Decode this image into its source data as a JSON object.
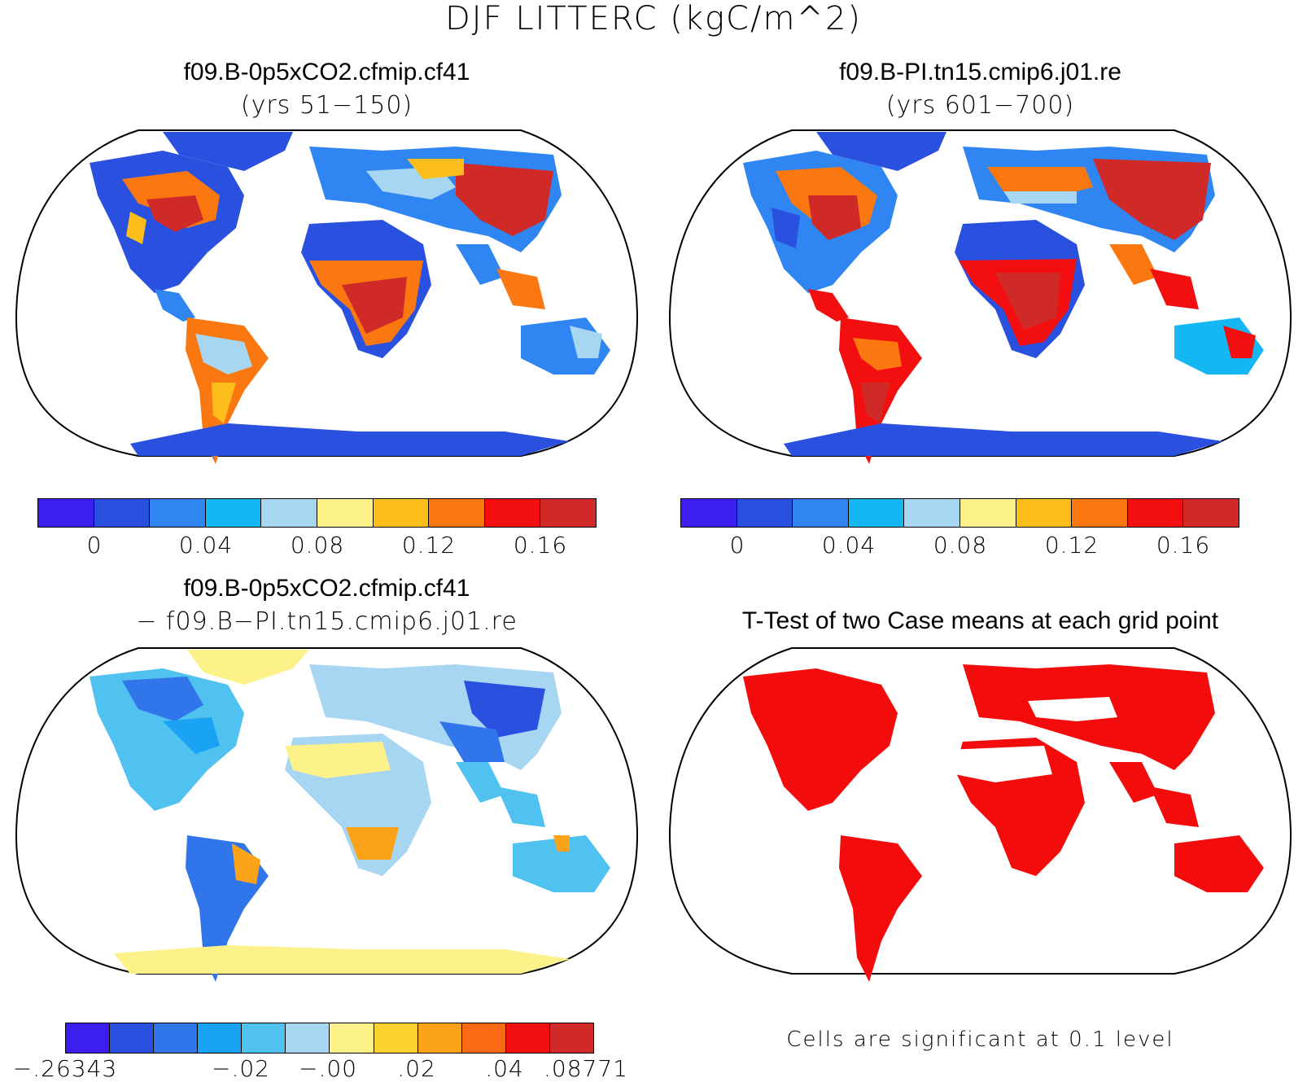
{
  "figure_title": "DJF LITTERC (kgC/m^2)",
  "panels": {
    "top_left": {
      "title": "f09.B-0p5xCO2.cfmip.cf41",
      "subtitle": "(yrs 51−150)"
    },
    "top_right": {
      "title": "f09.B-PI.tn15.cmip6.j01.re",
      "subtitle": "(yrs 601−700)"
    },
    "bottom_left": {
      "title": "f09.B-0p5xCO2.cfmip.cf41",
      "subtitle": "− f09.B−PI.tn15.cmip6.j01.re"
    },
    "bottom_right": {
      "title": "T-Test of two Case means at each grid point",
      "note": "Cells are significant at 0.1 level"
    }
  },
  "colorbars": {
    "abs": {
      "colors": [
        "#3d1ef0",
        "#2a50e0",
        "#2f86f2",
        "#14b7f2",
        "#a7d6f2",
        "#fdf18a",
        "#fdbd1a",
        "#fb7811",
        "#f30f0f",
        "#d02a28"
      ],
      "ticks": [
        "0",
        "0.04",
        "0.08",
        "0.12",
        "0.16"
      ]
    },
    "diff": {
      "colors": [
        "#3d1ef0",
        "#2a50e0",
        "#3175ea",
        "#1aa2f5",
        "#4fc2ef",
        "#a7d6f2",
        "#fdf18a",
        "#fdd230",
        "#fda31a",
        "#fb6a12",
        "#f30f0f",
        "#d02a28"
      ],
      "ticks": [
        "−.26343",
        "−.02",
        "−.00",
        ".02",
        ".04",
        ".08771"
      ]
    }
  },
  "map_colors": {
    "ocean": "#ffffff",
    "outline": "#000000",
    "significant": "#f40c0c"
  }
}
